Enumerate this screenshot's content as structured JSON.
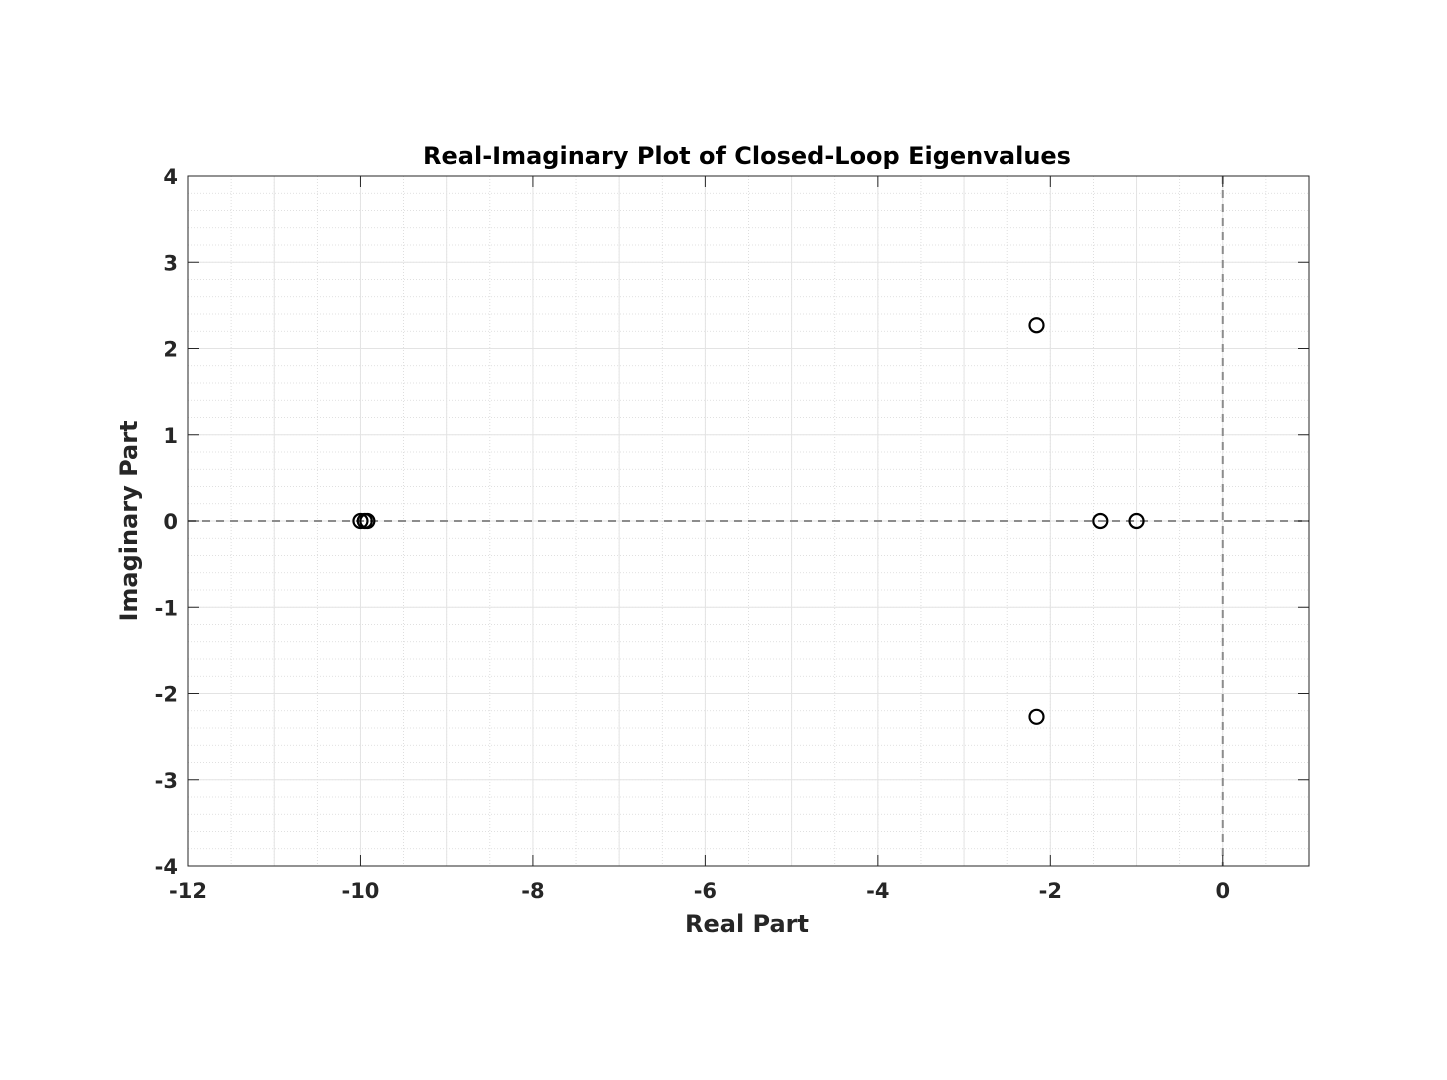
{
  "chart_data": {
    "type": "scatter",
    "title": "Real-Imaginary Plot of Closed-Loop Eigenvalues",
    "xlabel": "Real Part",
    "ylabel": "Imaginary Part",
    "xlim": [
      -12,
      1
    ],
    "ylim": [
      -4,
      4
    ],
    "xticks": [
      -12,
      -10,
      -8,
      -6,
      -4,
      -2,
      0
    ],
    "yticks": [
      -4,
      -3,
      -2,
      -1,
      0,
      1,
      2,
      3,
      4
    ],
    "xtick_labels": [
      "-12",
      "-10",
      "-8",
      "-6",
      "-4",
      "-2",
      "0"
    ],
    "ytick_labels": [
      "-4",
      "-3",
      "-2",
      "-1",
      "0",
      "1",
      "2",
      "3",
      "4"
    ],
    "grid": true,
    "minor_grid": true,
    "reference_lines": [
      {
        "orientation": "horizontal",
        "value": 0,
        "style": "dashed"
      },
      {
        "orientation": "vertical",
        "value": 0,
        "style": "dashed"
      }
    ],
    "points": [
      {
        "x": -10.0,
        "y": 0
      },
      {
        "x": -9.95,
        "y": 0
      },
      {
        "x": -9.92,
        "y": 0
      },
      {
        "x": -2.16,
        "y": 2.27
      },
      {
        "x": -2.16,
        "y": -2.27
      },
      {
        "x": -1.42,
        "y": 0
      },
      {
        "x": -1.0,
        "y": 0
      }
    ],
    "marker": "circle-open",
    "colors": {
      "marker": "#000000",
      "reference": "#8c8c8c",
      "grid": "#e3e3e3",
      "axis": "#262626"
    }
  }
}
